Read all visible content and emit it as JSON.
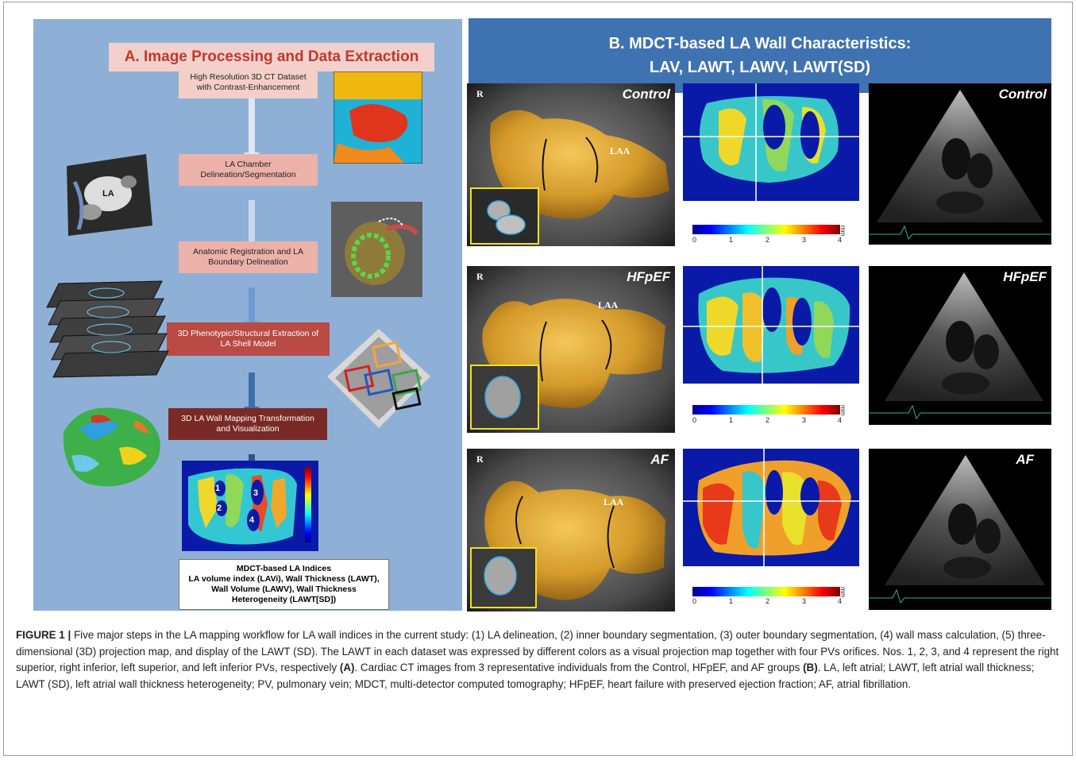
{
  "panel_a": {
    "title": "A. Image Processing and Data Extraction",
    "steps": [
      "High Resolution 3D CT Dataset with Contrast-Enhancement",
      "LA Chamber Delineation/Segmentation",
      "Anatomic Registration and LA Boundary Delineation",
      "3D Phenotypic/Structural Extraction of LA Shell Model",
      "3D LA Wall Mapping Transformation and Visualization"
    ],
    "la_label": "LA",
    "pv_numbers": [
      "1",
      "2",
      "3",
      "4"
    ],
    "indices_title": "MDCT-based LA Indices",
    "indices_text": "LA volume index (LAVi), Wall Thickness (LAWT), Wall Volume (LAWV), Wall Thickness Heterogeneity (LAWT[SD])"
  },
  "panel_b": {
    "title_line1": "B. MDCT-based LA Wall Characteristics:",
    "title_line2": "LAV, LAWT, LAWV, LAWT(SD)",
    "rows": [
      {
        "group": "Control",
        "r": "R",
        "laa": "LAA"
      },
      {
        "group": "HFpEF",
        "r": "R",
        "laa": "LAA"
      },
      {
        "group": "AF",
        "r": "R",
        "laa": "LAA"
      }
    ],
    "colorbar_ticks": [
      "0",
      "1",
      "2",
      "3",
      "4"
    ],
    "colorbar_unit": "mm"
  },
  "caption": {
    "label": "FIGURE 1 |",
    "text1": " Five major steps in the LA mapping workflow for LA wall indices in the current study: (1) LA delineation, (2) inner boundary segmentation, (3) outer boundary segmentation, (4) wall mass calculation, (5) three-dimensional (3D) projection map, and display of the LAWT (SD). The LAWT in each dataset was expressed by different colors as a visual projection map together with four PVs orifices. Nos. 1, 2, 3, and 4 represent the right superior, right inferior, left superior, and left inferior PVs, respectively ",
    "ref_a": "(A)",
    "text2": ". Cardiac CT images from 3 representative individuals from the Control, HFpEF, and AF groups ",
    "ref_b": "(B)",
    "text3": ". LA, left atrial; LAWT, left atrial wall thickness; LAWT (SD), left atrial wall thickness heterogeneity; PV, pulmonary vein; MDCT, multi-detector computed tomography; HFpEF, heart failure with preserved ejection fraction; AF, atrial fibrillation."
  },
  "colors": {
    "panel_a_bg": "#8eb0d6",
    "panel_b_title_bg": "#3f72b0",
    "title_red": "#c0392b",
    "la_yellow": "#d9a531"
  }
}
